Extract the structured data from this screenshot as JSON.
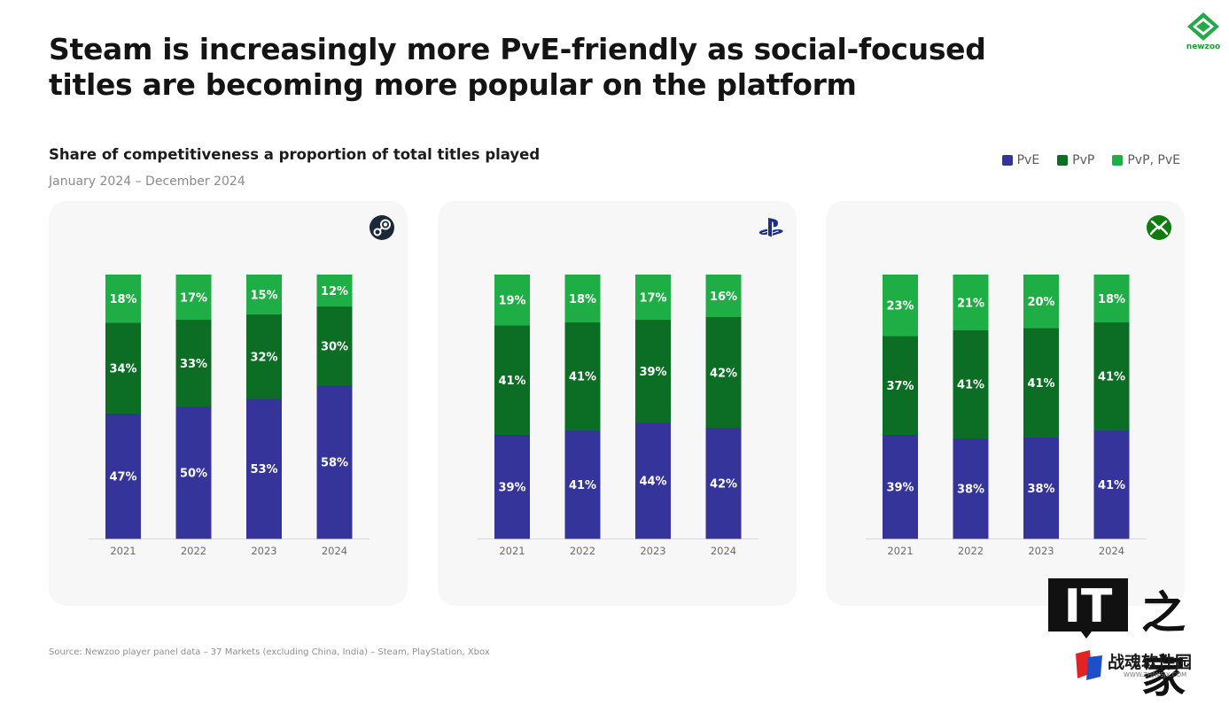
{
  "header": {
    "title": "Steam is increasingly more PvE-friendly as social-focused titles are becoming more popular on the platform",
    "brand_text": "newzoo"
  },
  "subtitle": "Share of competitiveness a proportion of total titles played",
  "date_range": "January 2024 – December 2024",
  "legend": [
    {
      "label": "PvE",
      "color": "#35349a"
    },
    {
      "label": "PvP",
      "color": "#0c6e24"
    },
    {
      "label": "PvP, PvE",
      "color": "#1fae45"
    }
  ],
  "platform_icons": [
    "steam-icon",
    "playstation-icon",
    "xbox-icon"
  ],
  "chart_data": [
    {
      "type": "bar",
      "stacked": true,
      "platform_icon": "steam-icon",
      "categories": [
        "2021",
        "2022",
        "2023",
        "2024"
      ],
      "series": [
        {
          "name": "PvE",
          "values": [
            47,
            50,
            53,
            58
          ],
          "labels": [
            "47%",
            "50%",
            "53%",
            "58%"
          ],
          "color": "#35349a"
        },
        {
          "name": "PvP",
          "values": [
            34,
            33,
            32,
            30
          ],
          "labels": [
            "34%",
            "33%",
            "32%",
            "30%"
          ],
          "color": "#0c6e24"
        },
        {
          "name": "PvP, PvE",
          "values": [
            18,
            17,
            15,
            12
          ],
          "labels": [
            "18%",
            "17%",
            "15%",
            "12%"
          ],
          "color": "#1fae45"
        }
      ]
    },
    {
      "type": "bar",
      "stacked": true,
      "platform_icon": "playstation-icon",
      "categories": [
        "2021",
        "2022",
        "2023",
        "2024"
      ],
      "series": [
        {
          "name": "PvE",
          "values": [
            39,
            41,
            44,
            42
          ],
          "labels": [
            "39%",
            "41%",
            "44%",
            "42%"
          ],
          "color": "#35349a"
        },
        {
          "name": "PvP",
          "values": [
            41,
            41,
            39,
            42
          ],
          "labels": [
            "41%",
            "41%",
            "39%",
            "42%"
          ],
          "color": "#0c6e24"
        },
        {
          "name": "PvP, PvE",
          "values": [
            19,
            18,
            17,
            16
          ],
          "labels": [
            "19%",
            "18%",
            "17%",
            "16%"
          ],
          "color": "#1fae45"
        }
      ]
    },
    {
      "type": "bar",
      "stacked": true,
      "platform_icon": "xbox-icon",
      "categories": [
        "2021",
        "2022",
        "2023",
        "2024"
      ],
      "series": [
        {
          "name": "PvE",
          "values": [
            39,
            38,
            38,
            41
          ],
          "labels": [
            "39%",
            "38%",
            "38%",
            "41%"
          ],
          "color": "#35349a"
        },
        {
          "name": "PvP",
          "values": [
            37,
            41,
            41,
            41
          ],
          "labels": [
            "37%",
            "41%",
            "41%",
            "41%"
          ],
          "color": "#0c6e24"
        },
        {
          "name": "PvP, PvE",
          "values": [
            23,
            21,
            20,
            18
          ],
          "labels": [
            "23%",
            "21%",
            "20%",
            "18%"
          ],
          "color": "#1fae45"
        }
      ]
    }
  ],
  "footer": {
    "source": "Source: Newzoo player panel data – 37 Markets (excluding China, India) – Steam, PlayStation, Xbox"
  },
  "watermark": {
    "badge_text": "IT",
    "cn_text": "之家",
    "site_name": "战魂软件园",
    "site_url": "WWW.ZHJWSJX.COM"
  }
}
